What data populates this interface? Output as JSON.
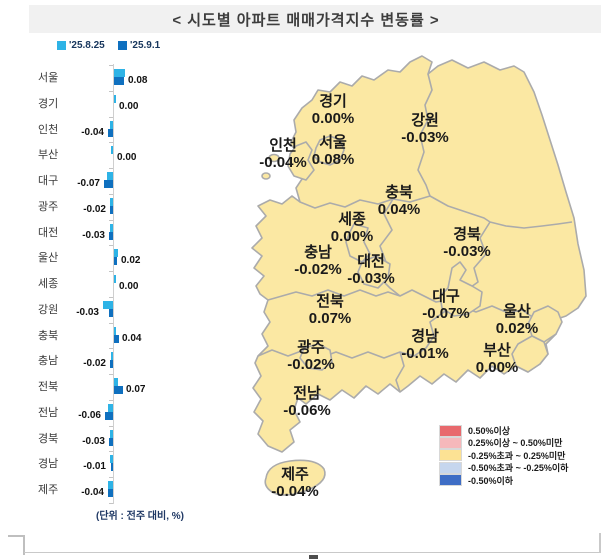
{
  "header": {
    "title": "< 시도별 아파트 매매가격지수 변동률 >"
  },
  "bar_chart": {
    "legend": [
      {
        "label": "'25.8.25"
      },
      {
        "label": "'25.9.1"
      }
    ],
    "unit_note": "(단위 : 전주 대비, %)"
  },
  "chart_data": {
    "type": "bar",
    "orientation": "horizontal",
    "title": "시도별 아파트 매매가격지수 변동률",
    "unit": "전주 대비, %",
    "categories": [
      "서울",
      "경기",
      "인천",
      "부산",
      "대구",
      "광주",
      "대전",
      "울산",
      "세종",
      "강원",
      "충북",
      "충남",
      "전북",
      "전남",
      "경북",
      "경남",
      "제주"
    ],
    "series": [
      {
        "name": "'25.8.25",
        "color": "#2eb3e6",
        "values": [
          0.09,
          0.01,
          -0.02,
          -0.01,
          -0.05,
          -0.02,
          -0.02,
          0.03,
          0.01,
          -0.08,
          0.01,
          -0.01,
          0.03,
          -0.04,
          -0.02,
          -0.02,
          -0.04
        ]
      },
      {
        "name": "'25.9.1",
        "color": "#0f70bf",
        "values": [
          0.08,
          0.0,
          -0.04,
          0.0,
          -0.07,
          -0.02,
          -0.03,
          0.02,
          0.0,
          -0.03,
          0.04,
          -0.02,
          0.07,
          -0.06,
          -0.03,
          -0.01,
          -0.04
        ]
      }
    ],
    "value_labels": [
      "0.08",
      "0.00",
      "-0.04",
      "0.00",
      "-0.07",
      "-0.02",
      "-0.03",
      "0.02",
      "0.00",
      "-0.03",
      "0.04",
      "-0.02",
      "0.07",
      "-0.06",
      "-0.03",
      "-0.01",
      "-0.04"
    ]
  },
  "map": {
    "regions": [
      {
        "id": "gyeonggi",
        "name": "경기",
        "value": "0.00%"
      },
      {
        "id": "gangwon",
        "name": "강원",
        "value": "-0.03%"
      },
      {
        "id": "incheon",
        "name": "인천",
        "value": "-0.04%"
      },
      {
        "id": "seoul",
        "name": "서울",
        "value": "0.08%"
      },
      {
        "id": "chungbuk",
        "name": "충북",
        "value": "0.04%"
      },
      {
        "id": "sejong",
        "name": "세종",
        "value": "0.00%"
      },
      {
        "id": "gyeongbuk",
        "name": "경북",
        "value": "-0.03%"
      },
      {
        "id": "chungnam",
        "name": "충남",
        "value": "-0.02%"
      },
      {
        "id": "daejeon",
        "name": "대전",
        "value": "-0.03%"
      },
      {
        "id": "daegu",
        "name": "대구",
        "value": "-0.07%"
      },
      {
        "id": "jeonbuk",
        "name": "전북",
        "value": "0.07%"
      },
      {
        "id": "ulsan",
        "name": "울산",
        "value": "0.02%"
      },
      {
        "id": "gwangju",
        "name": "광주",
        "value": "-0.02%"
      },
      {
        "id": "gyeongnam",
        "name": "경남",
        "value": "-0.01%"
      },
      {
        "id": "busan",
        "name": "부산",
        "value": "0.00%"
      },
      {
        "id": "jeonnam",
        "name": "전남",
        "value": "-0.06%"
      },
      {
        "id": "jeju",
        "name": "제주",
        "value": "-0.04%"
      }
    ],
    "legend": [
      {
        "label": "0.50%이상",
        "color": "#e8696d"
      },
      {
        "label": "0.25%이상 ~ 0.50%미만",
        "color": "#f6b8bb"
      },
      {
        "label": "-0.25%초과 ~ 0.25%미만",
        "color": "#fce294"
      },
      {
        "label": "-0.50%초과 ~ -0.25%이하",
        "color": "#c6d6ee"
      },
      {
        "label": "-0.50%이하",
        "color": "#3e6dc5"
      }
    ],
    "colors": {
      "land": "#fbe8a3",
      "border": "#ababab"
    }
  }
}
